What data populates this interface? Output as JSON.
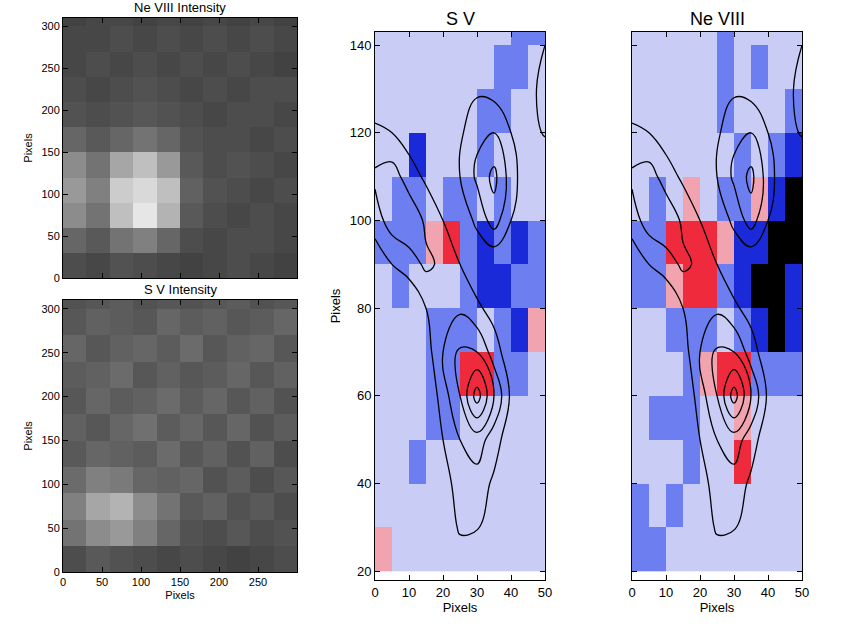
{
  "chart_data": [
    {
      "type": "heatmap",
      "title": "Ne VIII Intensity",
      "ylabel": "Pixels",
      "tick_labels": "y",
      "xlim": [
        0,
        300
      ],
      "ylim": [
        0,
        310
      ],
      "xticks": [
        0,
        50,
        100,
        150,
        200,
        250
      ],
      "yticks": [
        0,
        50,
        100,
        150,
        200,
        250,
        300
      ],
      "x": [
        15,
        45,
        75,
        105,
        135,
        165,
        195,
        225,
        255,
        285
      ],
      "y": [
        15,
        45,
        75,
        105,
        135,
        165,
        195,
        225,
        255,
        285,
        315
      ],
      "zlim": [
        0,
        100
      ],
      "cells": [
        [
          30,
          28,
          32,
          30,
          28,
          26,
          28,
          30,
          28,
          26
        ],
        [
          40,
          35,
          45,
          50,
          40,
          30,
          28,
          30,
          30,
          28
        ],
        [
          55,
          45,
          75,
          90,
          70,
          35,
          30,
          28,
          30,
          28
        ],
        [
          60,
          50,
          80,
          85,
          75,
          38,
          32,
          30,
          28,
          30
        ],
        [
          55,
          45,
          65,
          75,
          60,
          35,
          30,
          32,
          30,
          28
        ],
        [
          40,
          35,
          40,
          45,
          40,
          32,
          30,
          30,
          28,
          30
        ],
        [
          32,
          30,
          32,
          34,
          32,
          30,
          28,
          30,
          30,
          28
        ],
        [
          30,
          28,
          30,
          32,
          30,
          28,
          30,
          28,
          30,
          30
        ],
        [
          28,
          30,
          28,
          30,
          28,
          30,
          28,
          30,
          28,
          26
        ],
        [
          28,
          28,
          30,
          28,
          30,
          28,
          30,
          28,
          30,
          28
        ],
        [
          26,
          28,
          28,
          26,
          28,
          26,
          28,
          26,
          28,
          26
        ]
      ]
    },
    {
      "type": "heatmap",
      "title": "S V Intensity",
      "xlabel": "Pixels",
      "ylabel": "Pixels",
      "xlim": [
        0,
        300
      ],
      "ylim": [
        0,
        310
      ],
      "xticks": [
        0,
        50,
        100,
        150,
        200,
        250
      ],
      "yticks": [
        0,
        50,
        100,
        150,
        200,
        250,
        300
      ],
      "x": [
        15,
        45,
        75,
        105,
        135,
        165,
        195,
        225,
        255,
        285
      ],
      "y": [
        15,
        45,
        75,
        105,
        135,
        165,
        195,
        225,
        255,
        285,
        315
      ],
      "zlim": [
        0,
        100
      ],
      "cells": [
        [
          30,
          35,
          32,
          30,
          28,
          30,
          28,
          26,
          28,
          30
        ],
        [
          45,
          55,
          60,
          50,
          40,
          32,
          30,
          34,
          30,
          32
        ],
        [
          50,
          65,
          70,
          55,
          45,
          35,
          38,
          32,
          35,
          30
        ],
        [
          42,
          50,
          48,
          40,
          38,
          40,
          32,
          36,
          30,
          34
        ],
        [
          35,
          40,
          38,
          36,
          42,
          34,
          38,
          32,
          38,
          30
        ],
        [
          38,
          34,
          40,
          44,
          36,
          40,
          34,
          40,
          32,
          36
        ],
        [
          34,
          40,
          36,
          38,
          42,
          36,
          40,
          34,
          38,
          32
        ],
        [
          36,
          38,
          42,
          34,
          38,
          34,
          36,
          40,
          34,
          38
        ],
        [
          40,
          34,
          38,
          40,
          36,
          42,
          34,
          38,
          40,
          34
        ],
        [
          34,
          38,
          36,
          34,
          40,
          36,
          38,
          34,
          36,
          40
        ],
        [
          32,
          34,
          36,
          32,
          34,
          32,
          34,
          36,
          32,
          34
        ]
      ]
    },
    {
      "type": "heatmap",
      "title": "S V",
      "xlabel": "Pixels",
      "ylabel": "Pixels",
      "xlim": [
        0,
        50
      ],
      "ylim": [
        18,
        143
      ],
      "xticks": [
        0,
        10,
        20,
        30,
        40,
        50
      ],
      "yticks": [
        20,
        40,
        60,
        80,
        100,
        120,
        140
      ],
      "x": [
        2.5,
        7.5,
        12.5,
        17.5,
        22.5,
        27.5,
        32.5,
        37.5,
        42.5,
        47.5
      ],
      "y": [
        25,
        35,
        45,
        55,
        65,
        75,
        85,
        95,
        105,
        115,
        125,
        135,
        145
      ],
      "zlim": [
        -3,
        3
      ],
      "cells": [
        [
          1,
          0,
          0,
          0,
          0,
          0,
          0,
          0,
          0,
          0
        ],
        [
          0,
          0,
          0,
          0,
          0,
          0,
          0,
          0,
          0,
          0
        ],
        [
          0,
          0,
          -1,
          0,
          0,
          0,
          0,
          0,
          0,
          0
        ],
        [
          0,
          0,
          0,
          -1,
          -1,
          0,
          0,
          0,
          0,
          0
        ],
        [
          0,
          0,
          0,
          -1,
          -1,
          2,
          2,
          -1,
          -1,
          0
        ],
        [
          0,
          0,
          0,
          -1,
          -1,
          -1,
          0,
          -1,
          -2,
          1
        ],
        [
          0,
          -1,
          0,
          0,
          0,
          -1,
          -2,
          -2,
          -1,
          -1
        ],
        [
          -1,
          -1,
          -1,
          1,
          2,
          -1,
          -2,
          -1,
          -2,
          -1
        ],
        [
          0,
          -1,
          -1,
          0,
          -1,
          -1,
          0,
          -1,
          0,
          0
        ],
        [
          0,
          0,
          -2,
          0,
          0,
          0,
          -1,
          0,
          0,
          0
        ],
        [
          0,
          0,
          0,
          0,
          0,
          0,
          -1,
          -1,
          0,
          0
        ],
        [
          0,
          0,
          0,
          0,
          0,
          0,
          0,
          -1,
          -1,
          0
        ],
        [
          0,
          0,
          0,
          0,
          0,
          0,
          0,
          0,
          -1,
          -1
        ]
      ],
      "contours": {
        "levels": [
          1,
          2,
          3,
          4,
          5
        ],
        "x": [
          0,
          5,
          10,
          15,
          20,
          25,
          30,
          35,
          40,
          45,
          50
        ],
        "y": [
          20,
          30,
          40,
          50,
          60,
          70,
          80,
          90,
          100,
          110,
          120,
          130,
          140,
          150
        ],
        "values": [
          [
            0,
            0,
            0,
            0,
            0,
            0,
            0,
            0,
            0,
            0,
            0
          ],
          [
            0,
            0,
            0,
            0,
            0,
            1.2,
            1.1,
            0,
            0,
            0,
            0
          ],
          [
            0,
            0,
            0,
            0,
            0.5,
            1.5,
            1.6,
            0.8,
            0,
            0,
            0
          ],
          [
            0,
            0,
            0,
            0,
            1,
            2,
            2.5,
            1.5,
            0.3,
            0,
            0
          ],
          [
            0,
            0,
            0,
            0,
            1.5,
            3,
            5.5,
            3,
            0.8,
            0,
            0
          ],
          [
            0,
            0,
            0,
            0.5,
            2,
            3.2,
            3,
            1.5,
            0.3,
            0,
            0
          ],
          [
            0,
            0,
            0,
            1,
            1.5,
            1.8,
            1.2,
            0.6,
            0,
            0,
            0
          ],
          [
            0.3,
            1,
            1.5,
            2.2,
            1.8,
            1,
            0.3,
            0,
            0,
            0,
            0
          ],
          [
            1.5,
            2.5,
            2.8,
            1.8,
            1,
            0.4,
            1.2,
            2.5,
            1,
            0,
            0
          ],
          [
            2.2,
            2.5,
            1.5,
            0.8,
            0.3,
            1,
            2.2,
            3.3,
            1.5,
            0.2,
            0
          ],
          [
            1.2,
            1,
            0.5,
            0.2,
            0,
            0.8,
            1.8,
            2,
            1,
            0.6,
            1.1
          ],
          [
            0.3,
            0.2,
            0,
            0,
            0,
            0.3,
            0.8,
            0.6,
            0.3,
            0.8,
            1.2
          ],
          [
            0,
            0,
            0,
            0,
            0,
            0,
            0,
            0,
            0,
            0.6,
            1
          ],
          [
            0,
            0,
            0,
            0,
            0,
            0,
            0,
            0,
            0,
            0,
            0
          ]
        ]
      }
    },
    {
      "type": "heatmap",
      "title": "Ne VIII",
      "xlabel": "Pixels",
      "tick_labels": "x",
      "xlim": [
        0,
        50
      ],
      "ylim": [
        18,
        143
      ],
      "xticks": [
        0,
        10,
        20,
        30,
        40,
        50
      ],
      "yticks": [
        20,
        40,
        60,
        80,
        100,
        120,
        140
      ],
      "x": [
        2.5,
        7.5,
        12.5,
        17.5,
        22.5,
        27.5,
        32.5,
        37.5,
        42.5,
        47.5
      ],
      "y": [
        25,
        35,
        45,
        55,
        65,
        75,
        85,
        95,
        105,
        115,
        125,
        135,
        145
      ],
      "zlim": [
        -3,
        3
      ],
      "cells": [
        [
          -1,
          -1,
          0,
          0,
          0,
          0,
          0,
          0,
          0,
          0
        ],
        [
          -1,
          0,
          -1,
          0,
          0,
          0,
          0,
          0,
          0,
          0
        ],
        [
          0,
          0,
          0,
          -1,
          0,
          0,
          2,
          0,
          0,
          0
        ],
        [
          0,
          -1,
          -1,
          -1,
          0,
          0,
          1,
          0,
          0,
          0
        ],
        [
          0,
          0,
          0,
          -1,
          1,
          2,
          2,
          -1,
          -1,
          -1
        ],
        [
          0,
          0,
          -1,
          -1,
          -1,
          0,
          -1,
          -2,
          -3,
          -2
        ],
        [
          -1,
          -1,
          1,
          2,
          2,
          -1,
          -2,
          -3,
          -3,
          -2
        ],
        [
          -1,
          -1,
          2,
          2,
          2,
          1,
          -2,
          -2,
          -3,
          -3
        ],
        [
          0,
          -1,
          0,
          1,
          0,
          -1,
          -1,
          1,
          -2,
          -3
        ],
        [
          0,
          0,
          0,
          0,
          0,
          0,
          -1,
          0,
          -1,
          -2
        ],
        [
          0,
          0,
          0,
          0,
          0,
          -1,
          0,
          0,
          0,
          -1
        ],
        [
          0,
          0,
          0,
          0,
          0,
          -1,
          0,
          -1,
          0,
          0
        ],
        [
          0,
          0,
          0,
          0,
          0,
          -1,
          0,
          0,
          0,
          0
        ]
      ],
      "contours": {
        "levels": [
          1,
          2,
          3,
          4,
          5
        ],
        "x": [
          0,
          5,
          10,
          15,
          20,
          25,
          30,
          35,
          40,
          45,
          50
        ],
        "y": [
          20,
          30,
          40,
          50,
          60,
          70,
          80,
          90,
          100,
          110,
          120,
          130,
          140,
          150
        ],
        "values": [
          [
            0,
            0,
            0,
            0,
            0,
            0,
            0,
            0,
            0,
            0,
            0
          ],
          [
            0,
            0,
            0,
            0,
            0,
            1.2,
            1.1,
            0,
            0,
            0,
            0
          ],
          [
            0,
            0,
            0,
            0,
            0.5,
            1.5,
            1.6,
            0.8,
            0,
            0,
            0
          ],
          [
            0,
            0,
            0,
            0,
            1,
            2,
            2.5,
            1.5,
            0.3,
            0,
            0
          ],
          [
            0,
            0,
            0,
            0,
            1.5,
            3,
            5.5,
            3,
            0.8,
            0,
            0
          ],
          [
            0,
            0,
            0,
            0.5,
            2,
            3.2,
            3,
            1.5,
            0.3,
            0,
            0
          ],
          [
            0,
            0,
            0,
            1,
            1.5,
            1.8,
            1.2,
            0.6,
            0,
            0,
            0
          ],
          [
            0.3,
            1,
            1.5,
            2.2,
            1.8,
            1,
            0.3,
            0,
            0,
            0,
            0
          ],
          [
            1.5,
            2.5,
            2.8,
            1.8,
            1,
            0.4,
            1.2,
            2.5,
            1,
            0,
            0
          ],
          [
            2.2,
            2.5,
            1.5,
            0.8,
            0.3,
            1,
            2.2,
            3.3,
            1.5,
            0.2,
            0
          ],
          [
            1.2,
            1,
            0.5,
            0.2,
            0,
            0.8,
            1.8,
            2,
            1,
            0.6,
            1.1
          ],
          [
            0.3,
            0.2,
            0,
            0,
            0,
            0.3,
            0.8,
            0.6,
            0.3,
            0.8,
            1.2
          ],
          [
            0,
            0,
            0,
            0,
            0,
            0,
            0,
            0,
            0,
            0.6,
            1
          ],
          [
            0,
            0,
            0,
            0,
            0,
            0,
            0,
            0,
            0,
            0,
            0
          ]
        ]
      }
    }
  ]
}
